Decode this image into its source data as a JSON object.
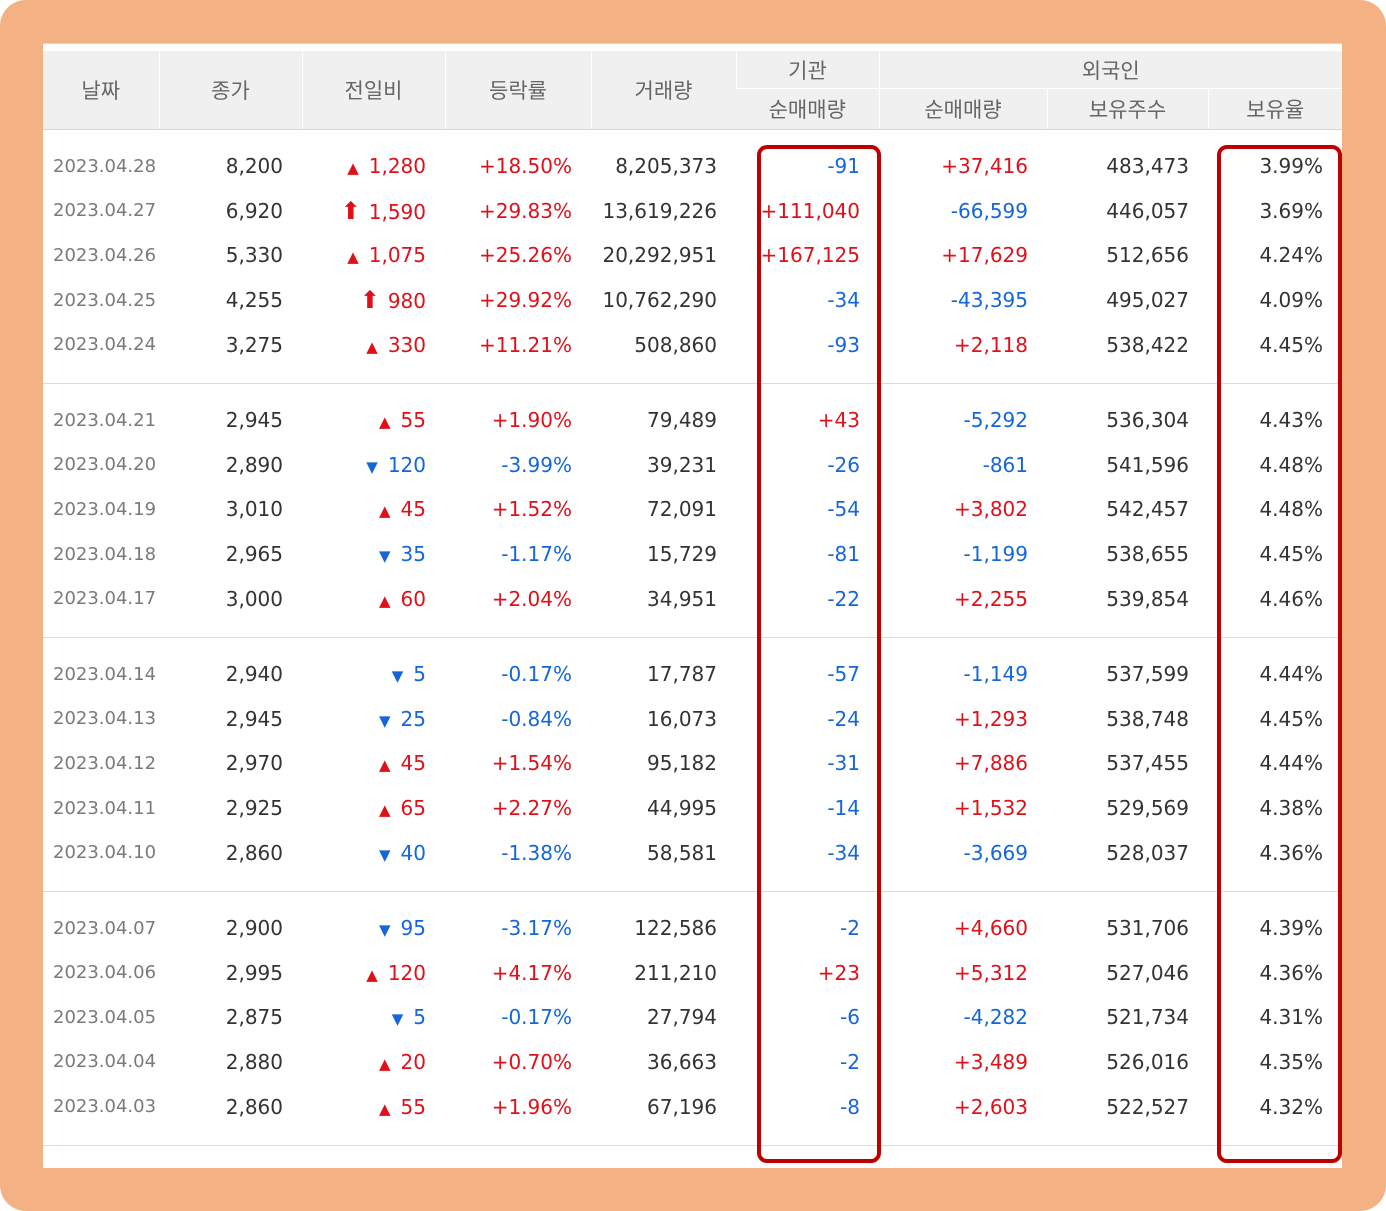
{
  "headers": {
    "date": "날짜",
    "close": "종가",
    "change": "전일비",
    "rate": "등락률",
    "volume": "거래량",
    "institution": "기관",
    "foreign": "외국인",
    "inst_net": "순매매량",
    "for_net": "순매매량",
    "for_holdings": "보유주수",
    "for_ratio": "보유율"
  },
  "groups": [
    [
      {
        "date": "2023.04.28",
        "close": "8,200",
        "dir": "up",
        "arrow": "▲",
        "change": "1,280",
        "rate": "+18.50%",
        "volume": "8,205,373",
        "inst": "-91",
        "inst_dir": "down",
        "for": "+37,416",
        "for_dir": "up",
        "hold": "483,473",
        "ratio": "3.99%"
      },
      {
        "date": "2023.04.27",
        "close": "6,920",
        "dir": "up",
        "arrow": "⬆",
        "limit": true,
        "change": "1,590",
        "rate": "+29.83%",
        "volume": "13,619,226",
        "inst": "+111,040",
        "inst_dir": "up",
        "for": "-66,599",
        "for_dir": "down",
        "hold": "446,057",
        "ratio": "3.69%"
      },
      {
        "date": "2023.04.26",
        "close": "5,330",
        "dir": "up",
        "arrow": "▲",
        "change": "1,075",
        "rate": "+25.26%",
        "volume": "20,292,951",
        "inst": "+167,125",
        "inst_dir": "up",
        "for": "+17,629",
        "for_dir": "up",
        "hold": "512,656",
        "ratio": "4.24%"
      },
      {
        "date": "2023.04.25",
        "close": "4,255",
        "dir": "up",
        "arrow": "⬆",
        "limit": true,
        "change": "980",
        "rate": "+29.92%",
        "volume": "10,762,290",
        "inst": "-34",
        "inst_dir": "down",
        "for": "-43,395",
        "for_dir": "down",
        "hold": "495,027",
        "ratio": "4.09%"
      },
      {
        "date": "2023.04.24",
        "close": "3,275",
        "dir": "up",
        "arrow": "▲",
        "change": "330",
        "rate": "+11.21%",
        "volume": "508,860",
        "inst": "-93",
        "inst_dir": "down",
        "for": "+2,118",
        "for_dir": "up",
        "hold": "538,422",
        "ratio": "4.45%"
      }
    ],
    [
      {
        "date": "2023.04.21",
        "close": "2,945",
        "dir": "up",
        "arrow": "▲",
        "change": "55",
        "rate": "+1.90%",
        "volume": "79,489",
        "inst": "+43",
        "inst_dir": "up",
        "for": "-5,292",
        "for_dir": "down",
        "hold": "536,304",
        "ratio": "4.43%"
      },
      {
        "date": "2023.04.20",
        "close": "2,890",
        "dir": "down",
        "arrow": "▼",
        "change": "120",
        "rate": "-3.99%",
        "volume": "39,231",
        "inst": "-26",
        "inst_dir": "down",
        "for": "-861",
        "for_dir": "down",
        "hold": "541,596",
        "ratio": "4.48%"
      },
      {
        "date": "2023.04.19",
        "close": "3,010",
        "dir": "up",
        "arrow": "▲",
        "change": "45",
        "rate": "+1.52%",
        "volume": "72,091",
        "inst": "-54",
        "inst_dir": "down",
        "for": "+3,802",
        "for_dir": "up",
        "hold": "542,457",
        "ratio": "4.48%"
      },
      {
        "date": "2023.04.18",
        "close": "2,965",
        "dir": "down",
        "arrow": "▼",
        "change": "35",
        "rate": "-1.17%",
        "volume": "15,729",
        "inst": "-81",
        "inst_dir": "down",
        "for": "-1,199",
        "for_dir": "down",
        "hold": "538,655",
        "ratio": "4.45%"
      },
      {
        "date": "2023.04.17",
        "close": "3,000",
        "dir": "up",
        "arrow": "▲",
        "change": "60",
        "rate": "+2.04%",
        "volume": "34,951",
        "inst": "-22",
        "inst_dir": "down",
        "for": "+2,255",
        "for_dir": "up",
        "hold": "539,854",
        "ratio": "4.46%"
      }
    ],
    [
      {
        "date": "2023.04.14",
        "close": "2,940",
        "dir": "down",
        "arrow": "▼",
        "change": "5",
        "rate": "-0.17%",
        "volume": "17,787",
        "inst": "-57",
        "inst_dir": "down",
        "for": "-1,149",
        "for_dir": "down",
        "hold": "537,599",
        "ratio": "4.44%"
      },
      {
        "date": "2023.04.13",
        "close": "2,945",
        "dir": "down",
        "arrow": "▼",
        "change": "25",
        "rate": "-0.84%",
        "volume": "16,073",
        "inst": "-24",
        "inst_dir": "down",
        "for": "+1,293",
        "for_dir": "up",
        "hold": "538,748",
        "ratio": "4.45%"
      },
      {
        "date": "2023.04.12",
        "close": "2,970",
        "dir": "up",
        "arrow": "▲",
        "change": "45",
        "rate": "+1.54%",
        "volume": "95,182",
        "inst": "-31",
        "inst_dir": "down",
        "for": "+7,886",
        "for_dir": "up",
        "hold": "537,455",
        "ratio": "4.44%"
      },
      {
        "date": "2023.04.11",
        "close": "2,925",
        "dir": "up",
        "arrow": "▲",
        "change": "65",
        "rate": "+2.27%",
        "volume": "44,995",
        "inst": "-14",
        "inst_dir": "down",
        "for": "+1,532",
        "for_dir": "up",
        "hold": "529,569",
        "ratio": "4.38%"
      },
      {
        "date": "2023.04.10",
        "close": "2,860",
        "dir": "down",
        "arrow": "▼",
        "change": "40",
        "rate": "-1.38%",
        "volume": "58,581",
        "inst": "-34",
        "inst_dir": "down",
        "for": "-3,669",
        "for_dir": "down",
        "hold": "528,037",
        "ratio": "4.36%"
      }
    ],
    [
      {
        "date": "2023.04.07",
        "close": "2,900",
        "dir": "down",
        "arrow": "▼",
        "change": "95",
        "rate": "-3.17%",
        "volume": "122,586",
        "inst": "-2",
        "inst_dir": "down",
        "for": "+4,660",
        "for_dir": "up",
        "hold": "531,706",
        "ratio": "4.39%"
      },
      {
        "date": "2023.04.06",
        "close": "2,995",
        "dir": "up",
        "arrow": "▲",
        "change": "120",
        "rate": "+4.17%",
        "volume": "211,210",
        "inst": "+23",
        "inst_dir": "up",
        "for": "+5,312",
        "for_dir": "up",
        "hold": "527,046",
        "ratio": "4.36%"
      },
      {
        "date": "2023.04.05",
        "close": "2,875",
        "dir": "down",
        "arrow": "▼",
        "change": "5",
        "rate": "-0.17%",
        "volume": "27,794",
        "inst": "-6",
        "inst_dir": "down",
        "for": "-4,282",
        "for_dir": "down",
        "hold": "521,734",
        "ratio": "4.31%"
      },
      {
        "date": "2023.04.04",
        "close": "2,880",
        "dir": "up",
        "arrow": "▲",
        "change": "20",
        "rate": "+0.70%",
        "volume": "36,663",
        "inst": "-2",
        "inst_dir": "down",
        "for": "+3,489",
        "for_dir": "up",
        "hold": "526,016",
        "ratio": "4.35%"
      },
      {
        "date": "2023.04.03",
        "close": "2,860",
        "dir": "up",
        "arrow": "▲",
        "change": "55",
        "rate": "+1.96%",
        "volume": "67,196",
        "inst": "-8",
        "inst_dir": "down",
        "for": "+2,603",
        "for_dir": "up",
        "hold": "522,527",
        "ratio": "4.32%"
      }
    ]
  ],
  "colors": {
    "up": "#e0101a",
    "down": "#1466d9",
    "highlight": "#c00000",
    "frame": "#f4b183"
  }
}
